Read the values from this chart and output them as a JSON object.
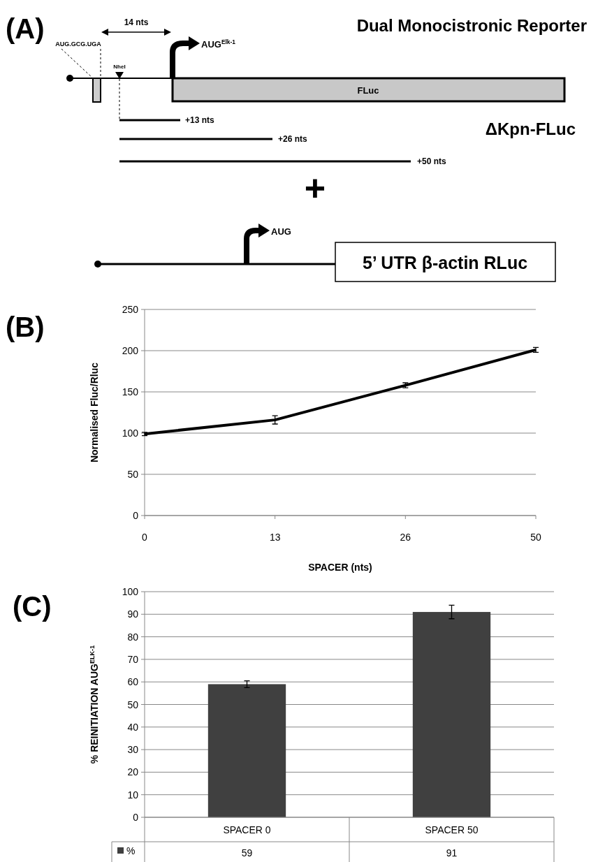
{
  "chart_data": [
    {
      "type": "other",
      "title": "(A)",
      "annotations": [
        "Dual Monocistronic Reporter",
        "14 nts",
        "AUG.GCG.UGA",
        "NheI",
        "AUG$^{Elk-1}$",
        "FLuc",
        "ΔKpn-FLuc",
        "+13 nts",
        "+26 nts",
        "+50 nts",
        "+",
        "AUG",
        "5’ UTR β-actin RLuc"
      ]
    },
    {
      "type": "line",
      "title": "(B)",
      "xlabel": "SPACER (nts)",
      "ylabel": "Normalised Fluc/Rluc",
      "categories": [
        "0",
        "13",
        "26",
        "50"
      ],
      "series": [
        {
          "color": "#000000",
          "values": [
            99,
            116,
            158,
            201
          ],
          "errors": [
            2,
            5,
            3,
            3
          ]
        }
      ],
      "ylim": [
        0,
        250
      ],
      "yticks": [
        0,
        50,
        100,
        150,
        200,
        250
      ],
      "grid": "y",
      "line_style": "solid"
    },
    {
      "type": "bar",
      "title": "(C)",
      "ylabel": "% REINITIATION AUG$^{ELK-1}$",
      "categories": [
        "SPACER 0",
        "SPACER 50"
      ],
      "series": [
        {
          "name": "%",
          "color": "#404040",
          "values": [
            59,
            91
          ],
          "errors": [
            1.5,
            3
          ]
        }
      ],
      "ylim": [
        0,
        100
      ],
      "yticks": [
        0,
        10,
        20,
        30,
        40,
        50,
        60,
        70,
        80,
        90,
        100
      ],
      "grid": "y",
      "data_labels": true,
      "legend": "bottom"
    }
  ]
}
